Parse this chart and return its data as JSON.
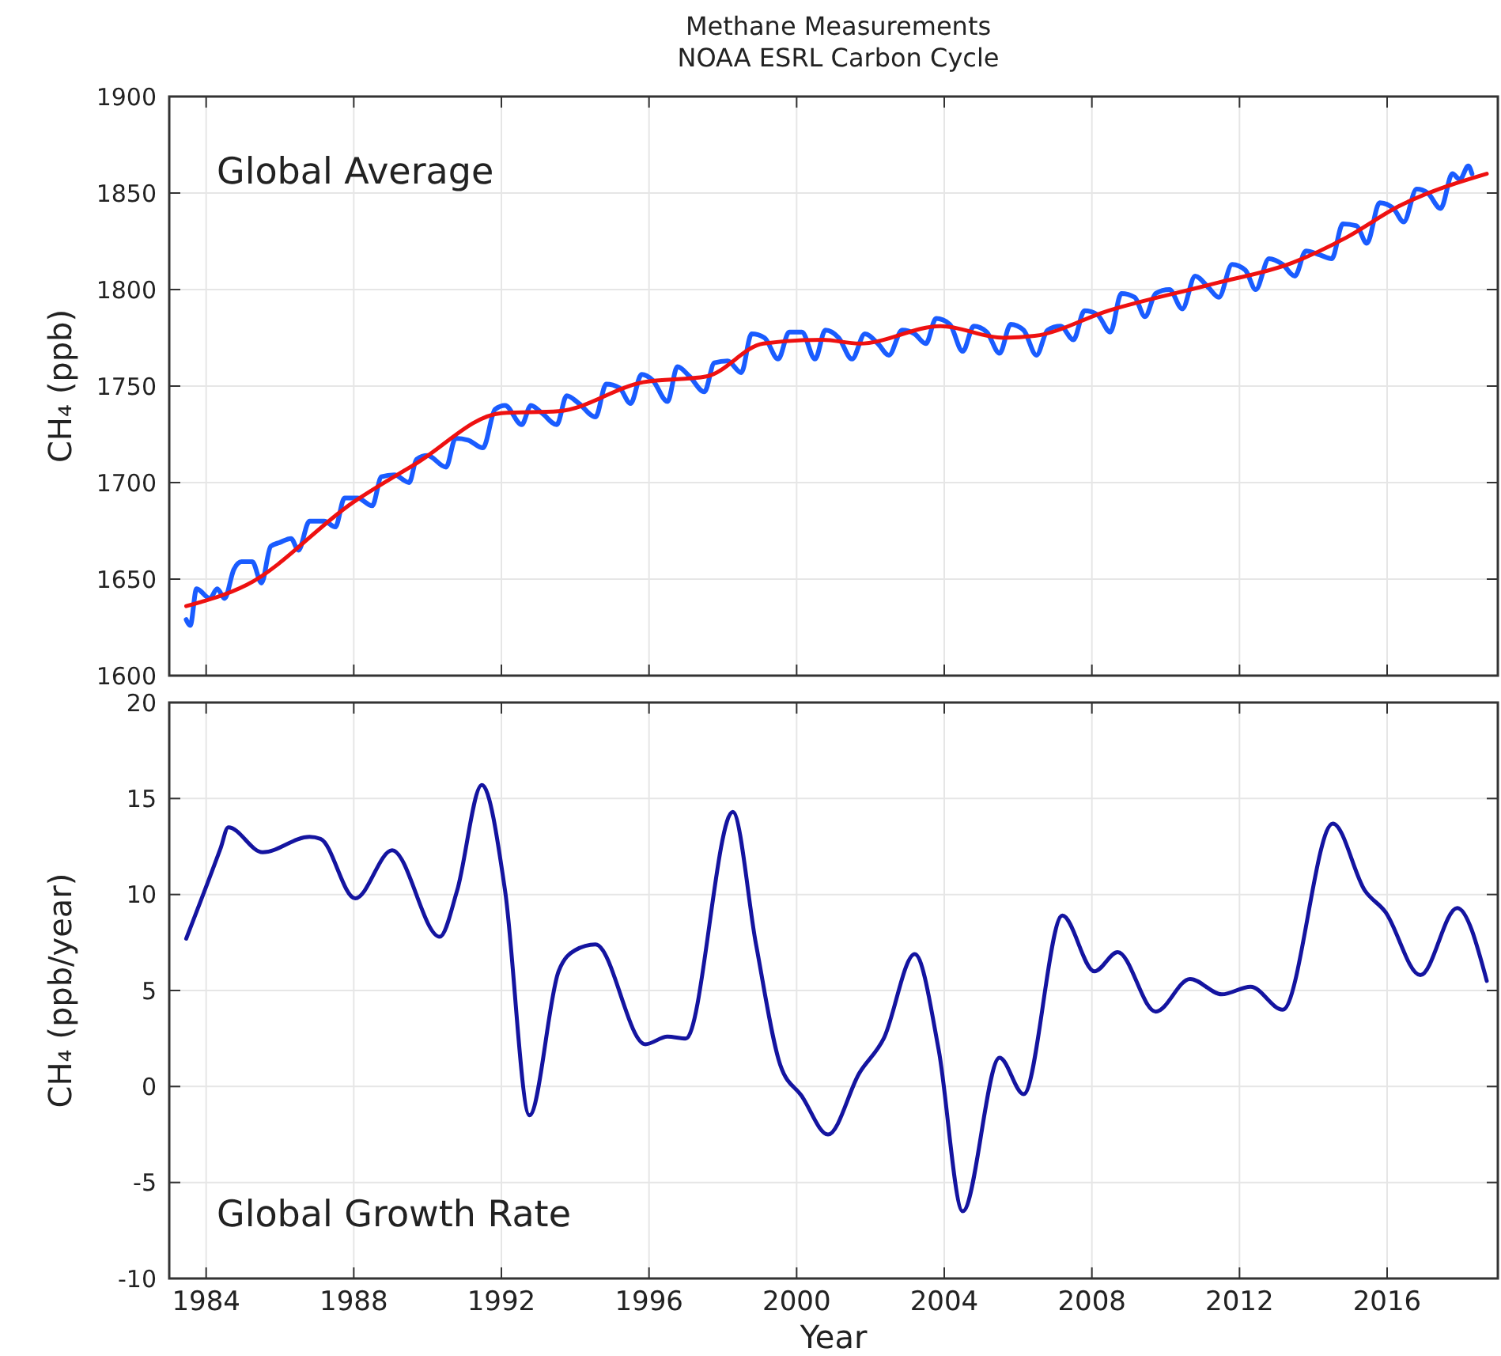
{
  "chart_data": [
    {
      "type": "line",
      "title": "Methane Measurements",
      "subtitle": "NOAA ESRL Carbon Cycle",
      "ylabel": "CH₄ (ppb)",
      "annotations": [
        "Global Average"
      ],
      "xlim": [
        1983,
        2019
      ],
      "xticks": [
        1984,
        1988,
        1992,
        1996,
        2000,
        2004,
        2008,
        2012,
        2016
      ],
      "ylim": [
        1600,
        1900
      ],
      "yticks": [
        1600,
        1650,
        1700,
        1750,
        1800,
        1850,
        1900
      ],
      "grid": true,
      "tick_labels": "y",
      "line_style": "solid",
      "marker": "none",
      "series": [
        {
          "color": "#1a5cff",
          "x": [
            1983.46,
            1983.57,
            1983.74,
            1984.1,
            1984.3,
            1984.5,
            1984.75,
            1984.96,
            1985.25,
            1985.5,
            1985.75,
            1986.0,
            1986.3,
            1986.5,
            1986.8,
            1987.2,
            1987.5,
            1987.75,
            1988.1,
            1988.5,
            1988.75,
            1989.1,
            1989.5,
            1989.7,
            1990.0,
            1990.5,
            1990.76,
            1991.1,
            1991.5,
            1991.83,
            1992.1,
            1992.55,
            1992.8,
            1993.1,
            1993.5,
            1993.77,
            1994.1,
            1994.55,
            1994.84,
            1995.2,
            1995.5,
            1995.8,
            1996.1,
            1996.5,
            1996.77,
            1997.1,
            1997.5,
            1997.77,
            1998.13,
            1998.5,
            1998.78,
            1999.13,
            1999.5,
            1999.8,
            2000.14,
            2000.5,
            2000.78,
            2001.14,
            2001.5,
            2001.85,
            2002.2,
            2002.5,
            2002.86,
            2003.2,
            2003.5,
            2003.78,
            2004.15,
            2004.5,
            2004.8,
            2005.15,
            2005.5,
            2005.8,
            2006.15,
            2006.5,
            2006.8,
            2007.15,
            2007.5,
            2007.8,
            2008.15,
            2008.5,
            2008.8,
            2009.16,
            2009.44,
            2009.73,
            2010.1,
            2010.45,
            2010.8,
            2011.16,
            2011.44,
            2011.8,
            2012.16,
            2012.44,
            2012.8,
            2013.17,
            2013.5,
            2013.8,
            2014.17,
            2014.5,
            2014.8,
            2015.17,
            2015.45,
            2015.8,
            2016.17,
            2016.45,
            2016.8,
            2017.1,
            2017.45,
            2017.77,
            2017.97,
            2018.2,
            2018.3
          ],
          "values": [
            1629,
            1626,
            1645,
            1640,
            1645,
            1640,
            1655,
            1659,
            1659,
            1648,
            1667,
            1669,
            1671,
            1665,
            1680,
            1680,
            1677,
            1692,
            1692,
            1688,
            1703,
            1704,
            1700,
            1712,
            1714,
            1708,
            1723,
            1722,
            1718,
            1738,
            1740,
            1730,
            1740,
            1736,
            1730,
            1745,
            1741,
            1734,
            1751,
            1749,
            1741,
            1756,
            1753,
            1742,
            1760,
            1755,
            1747,
            1762,
            1763,
            1757,
            1777,
            1775,
            1764,
            1778,
            1778,
            1764,
            1779,
            1775,
            1764,
            1777,
            1772,
            1766,
            1779,
            1777,
            1772,
            1785,
            1782,
            1768,
            1781,
            1778,
            1767,
            1782,
            1779,
            1766,
            1779,
            1781,
            1774,
            1789,
            1787,
            1778,
            1798,
            1796,
            1786,
            1798,
            1800,
            1790,
            1807,
            1801,
            1796,
            1813,
            1810,
            1800,
            1816,
            1813,
            1807,
            1820,
            1818,
            1816,
            1834,
            1833,
            1824,
            1845,
            1842,
            1835,
            1852,
            1850,
            1842,
            1860,
            1857,
            1864,
            1860
          ]
        },
        {
          "color": "#ee1111",
          "x": [
            1983.46,
            1985.1,
            1988.0,
            1989.7,
            1992.0,
            1993.55,
            1995.84,
            1997.56,
            1999.1,
            2000.7,
            2001.7,
            2003.9,
            2005.6,
            2006.45,
            2008.44,
            2011.3,
            2013.45,
            2014.9,
            2016.3,
            2018.7
          ],
          "values": [
            1636,
            1647,
            1690,
            1710,
            1736,
            1737,
            1752,
            1755,
            1772,
            1774,
            1772,
            1781,
            1775,
            1776,
            1789,
            1803,
            1814,
            1827,
            1843,
            1860
          ]
        }
      ]
    },
    {
      "type": "line",
      "xlabel": "Year",
      "ylabel": "CH₄ (ppb/year)",
      "annotations": [
        "Global Growth Rate"
      ],
      "xlim": [
        1983,
        2019
      ],
      "xticks": [
        1984,
        1988,
        1992,
        1996,
        2000,
        2004,
        2008,
        2012,
        2016
      ],
      "ylim": [
        -10,
        20
      ],
      "yticks": [
        -10,
        -5,
        0,
        5,
        10,
        15,
        20
      ],
      "grid": true,
      "line_style": "solid",
      "marker": "none",
      "series": [
        {
          "color": "#1414a0",
          "x": [
            1983.46,
            1984.39,
            1984.6,
            1985.53,
            1986.8,
            1987.1,
            1988.04,
            1989.04,
            1990.33,
            1990.8,
            1991.47,
            1992.1,
            1992.76,
            1993.55,
            1994.0,
            1994.55,
            1995.9,
            1996.5,
            1997.0,
            1998.27,
            1998.9,
            1999.56,
            2000.14,
            2000.85,
            2001.7,
            2002.36,
            2003.2,
            2003.85,
            2004.5,
            2005.5,
            2006.15,
            2007.2,
            2008.07,
            2008.7,
            2009.73,
            2010.66,
            2011.52,
            2012.3,
            2013.17,
            2014.53,
            2015.4,
            2015.95,
            2016.9,
            2017.9,
            2018.7
          ],
          "values": [
            7.7,
            12.4,
            13.5,
            12.2,
            13.0,
            12.9,
            9.8,
            12.3,
            7.8,
            10.2,
            15.7,
            10.2,
            -1.5,
            6.0,
            7.1,
            7.4,
            2.2,
            2.6,
            2.5,
            14.3,
            7.4,
            1.1,
            -0.5,
            -2.5,
            0.7,
            2.5,
            6.9,
            1.9,
            -6.5,
            1.5,
            -0.4,
            8.9,
            6.0,
            7.0,
            3.9,
            5.6,
            4.8,
            5.2,
            4.0,
            13.7,
            10.2,
            9.1,
            5.8,
            9.3,
            5.5
          ]
        }
      ]
    }
  ]
}
